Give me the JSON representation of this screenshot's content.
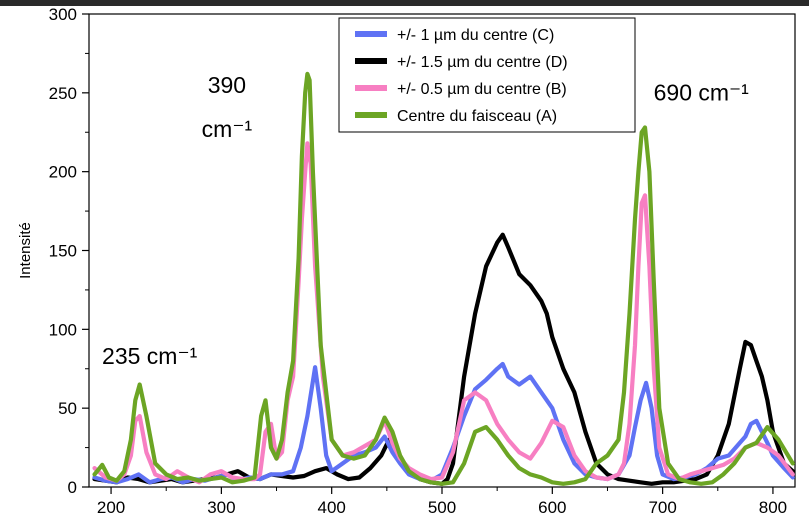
{
  "chart_data": {
    "type": "line",
    "title": "",
    "xlabel": "",
    "ylabel": "Intensité",
    "xlim": [
      180,
      820
    ],
    "ylim": [
      0,
      300
    ],
    "xticks": [
      200,
      300,
      400,
      500,
      600,
      700,
      800
    ],
    "yticks": [
      0,
      50,
      100,
      150,
      200,
      250,
      300
    ],
    "grid": false,
    "legend_position": "top-center",
    "annotations": [
      {
        "text": "235 cm⁻¹",
        "x": 235,
        "y": 78
      },
      {
        "text": "390",
        "x": 305,
        "y": 250
      },
      {
        "text": "cm⁻¹",
        "x": 305,
        "y": 222
      },
      {
        "text": "690 cm⁻¹",
        "x": 735,
        "y": 245
      }
    ],
    "series": [
      {
        "name": "+/- 1 µm du centre (C)",
        "color": "#5f72f4",
        "x": [
          185,
          195,
          205,
          215,
          225,
          235,
          245,
          255,
          265,
          275,
          285,
          295,
          305,
          315,
          325,
          335,
          345,
          355,
          365,
          372,
          378,
          385,
          390,
          395,
          400,
          410,
          420,
          430,
          440,
          448,
          455,
          462,
          470,
          480,
          490,
          500,
          510,
          520,
          530,
          540,
          550,
          555,
          560,
          570,
          580,
          590,
          600,
          610,
          620,
          630,
          640,
          650,
          660,
          670,
          675,
          680,
          685,
          690,
          695,
          700,
          710,
          720,
          730,
          740,
          750,
          760,
          770,
          775,
          780,
          785,
          790,
          795,
          800,
          810,
          818
        ],
        "y": [
          6,
          4,
          3,
          5,
          8,
          3,
          5,
          6,
          3,
          5,
          4,
          6,
          8,
          4,
          6,
          5,
          8,
          8,
          10,
          25,
          45,
          76,
          50,
          20,
          10,
          15,
          20,
          22,
          25,
          32,
          22,
          15,
          8,
          5,
          4,
          8,
          25,
          45,
          62,
          68,
          75,
          78,
          70,
          65,
          70,
          60,
          50,
          30,
          15,
          8,
          6,
          5,
          8,
          20,
          38,
          55,
          66,
          50,
          20,
          8,
          5,
          6,
          8,
          12,
          18,
          20,
          28,
          32,
          40,
          42,
          35,
          28,
          20,
          12,
          6
        ]
      },
      {
        "name": "+/- 1.5 µm du centre (D)",
        "color": "#000000",
        "x": [
          185,
          195,
          205,
          215,
          225,
          235,
          245,
          255,
          265,
          275,
          285,
          295,
          305,
          315,
          325,
          335,
          345,
          355,
          365,
          375,
          385,
          395,
          405,
          415,
          425,
          435,
          445,
          452,
          458,
          465,
          472,
          480,
          490,
          500,
          505,
          510,
          520,
          530,
          540,
          550,
          555,
          560,
          570,
          580,
          590,
          595,
          600,
          610,
          620,
          630,
          640,
          650,
          660,
          670,
          680,
          690,
          700,
          710,
          720,
          730,
          740,
          750,
          760,
          770,
          775,
          780,
          785,
          790,
          795,
          800,
          810,
          818
        ],
        "y": [
          5,
          4,
          3,
          6,
          5,
          3,
          4,
          5,
          3,
          4,
          5,
          6,
          8,
          10,
          6,
          5,
          8,
          7,
          6,
          7,
          10,
          12,
          8,
          5,
          6,
          12,
          20,
          30,
          25,
          15,
          10,
          5,
          3,
          2,
          5,
          15,
          70,
          110,
          140,
          155,
          160,
          152,
          135,
          128,
          118,
          110,
          95,
          75,
          60,
          35,
          15,
          8,
          5,
          4,
          3,
          2,
          3,
          3,
          4,
          5,
          8,
          20,
          40,
          75,
          92,
          90,
          80,
          70,
          55,
          35,
          15,
          10
        ]
      },
      {
        "name": "+/- 0.5 µm du centre (B)",
        "color": "#f77fc2",
        "x": [
          185,
          195,
          205,
          212,
          218,
          222,
          226,
          232,
          240,
          250,
          260,
          270,
          280,
          290,
          300,
          310,
          320,
          330,
          335,
          340,
          345,
          350,
          355,
          360,
          365,
          370,
          373,
          376,
          378,
          381,
          385,
          392,
          400,
          410,
          420,
          430,
          440,
          448,
          455,
          462,
          470,
          480,
          490,
          500,
          510,
          520,
          530,
          540,
          550,
          560,
          570,
          580,
          590,
          600,
          610,
          620,
          630,
          640,
          650,
          660,
          665,
          670,
          675,
          678,
          681,
          684,
          688,
          692,
          697,
          705,
          715,
          725,
          735,
          745,
          755,
          765,
          775,
          785,
          795,
          805,
          818
        ],
        "y": [
          12,
          6,
          4,
          8,
          20,
          42,
          45,
          22,
          8,
          5,
          10,
          6,
          3,
          8,
          10,
          6,
          5,
          5,
          8,
          35,
          40,
          18,
          22,
          55,
          70,
          130,
          170,
          200,
          218,
          205,
          140,
          70,
          30,
          20,
          22,
          26,
          30,
          42,
          28,
          18,
          12,
          8,
          5,
          6,
          22,
          55,
          60,
          55,
          40,
          30,
          22,
          18,
          28,
          42,
          38,
          20,
          10,
          6,
          5,
          8,
          15,
          40,
          90,
          140,
          180,
          185,
          140,
          75,
          25,
          8,
          5,
          8,
          10,
          12,
          14,
          18,
          25,
          28,
          25,
          20,
          8
        ]
      },
      {
        "name": "Centre du faisceau (A)",
        "color": "#6ca524",
        "x": [
          185,
          192,
          198,
          205,
          212,
          218,
          222,
          226,
          232,
          240,
          250,
          260,
          270,
          280,
          290,
          300,
          310,
          320,
          330,
          336,
          340,
          345,
          350,
          355,
          360,
          365,
          370,
          373,
          376,
          378,
          380,
          383,
          390,
          400,
          410,
          420,
          430,
          440,
          448,
          455,
          462,
          470,
          480,
          490,
          500,
          510,
          520,
          530,
          540,
          550,
          560,
          570,
          580,
          590,
          600,
          610,
          620,
          630,
          640,
          650,
          660,
          665,
          670,
          675,
          678,
          681,
          684,
          688,
          692,
          697,
          705,
          715,
          725,
          735,
          745,
          755,
          765,
          775,
          785,
          795,
          805,
          818
        ],
        "y": [
          8,
          14,
          6,
          4,
          10,
          30,
          55,
          65,
          45,
          15,
          8,
          5,
          6,
          4,
          5,
          6,
          3,
          4,
          6,
          45,
          55,
          25,
          18,
          30,
          60,
          80,
          145,
          210,
          250,
          262,
          258,
          200,
          90,
          30,
          20,
          18,
          20,
          30,
          44,
          35,
          20,
          10,
          5,
          3,
          2,
          3,
          15,
          35,
          38,
          30,
          20,
          12,
          8,
          6,
          3,
          2,
          3,
          5,
          15,
          20,
          30,
          60,
          110,
          170,
          200,
          225,
          228,
          200,
          130,
          50,
          15,
          5,
          3,
          2,
          3,
          8,
          15,
          25,
          28,
          38,
          30,
          15
        ]
      }
    ]
  }
}
